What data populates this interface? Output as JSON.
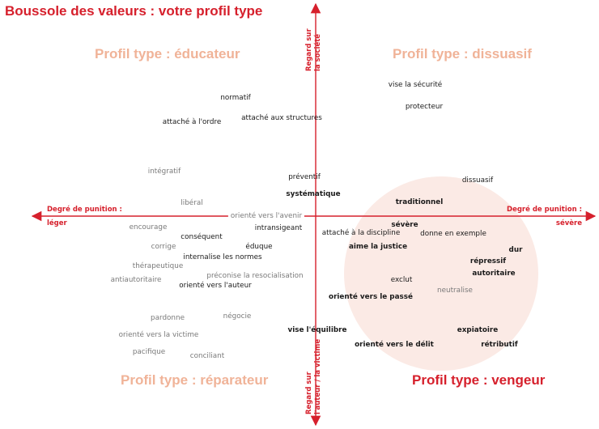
{
  "title": "Boussole des valeurs : votre profil type",
  "quadrants": {
    "educateur": "Profil type : éducateur",
    "dissuasif": "Profil type : dissuasif",
    "reparateur": "Profil type : réparateur",
    "vengeur": "Profil type : vengeur"
  },
  "axes": {
    "left_top": "Degré de punition :",
    "left_bottom": "léger",
    "right_top": "Degré de punition :",
    "right_bottom": "sévère",
    "top_line1": "Regard sur",
    "top_line2": "la société",
    "bottom_line1": "Regard sur",
    "bottom_line2": "l'auteur / la victime"
  },
  "colors": {
    "accent": "#d6202c",
    "quadrant_light": "#f0b398",
    "circle_fill": "#fbeae5"
  },
  "terms": [
    {
      "text": "vise la sécurité",
      "style": "dark"
    },
    {
      "text": "protecteur",
      "style": "dark"
    },
    {
      "text": "normatif",
      "style": "dark"
    },
    {
      "text": "attaché aux structures",
      "style": "dark"
    },
    {
      "text": "attaché à l'ordre",
      "style": "dark"
    },
    {
      "text": "intégratif",
      "style": "gray"
    },
    {
      "text": "préventif",
      "style": "dark"
    },
    {
      "text": "systématique",
      "style": "bold"
    },
    {
      "text": "dissuasif",
      "style": "dark"
    },
    {
      "text": "libéral",
      "style": "gray"
    },
    {
      "text": "traditionnel",
      "style": "bold"
    },
    {
      "text": "orienté vers l'avenir",
      "style": "gray"
    },
    {
      "text": "encourage",
      "style": "gray"
    },
    {
      "text": "intransigeant",
      "style": "dark"
    },
    {
      "text": "sévère",
      "style": "bold"
    },
    {
      "text": "corrige",
      "style": "gray"
    },
    {
      "text": "conséquent",
      "style": "dark"
    },
    {
      "text": "attaché à la discipline",
      "style": "dark"
    },
    {
      "text": "donne en exemple",
      "style": "dark"
    },
    {
      "text": "éduque",
      "style": "dark"
    },
    {
      "text": "aime la justice",
      "style": "bold"
    },
    {
      "text": "dur",
      "style": "bold"
    },
    {
      "text": "internalise les normes",
      "style": "dark"
    },
    {
      "text": "thérapeutique",
      "style": "gray"
    },
    {
      "text": "répressif",
      "style": "bold"
    },
    {
      "text": "préconise la resocialisation",
      "style": "gray"
    },
    {
      "text": "autoritaire",
      "style": "bold"
    },
    {
      "text": "antiautoritaire",
      "style": "gray"
    },
    {
      "text": "orienté vers l'auteur",
      "style": "dark"
    },
    {
      "text": "exclut",
      "style": "dark"
    },
    {
      "text": "neutralise",
      "style": "gray"
    },
    {
      "text": "orienté vers le passé",
      "style": "bold"
    },
    {
      "text": "négocie",
      "style": "gray"
    },
    {
      "text": "pardonne",
      "style": "gray"
    },
    {
      "text": "vise l'équilibre",
      "style": "bold"
    },
    {
      "text": "expiatoire",
      "style": "bold"
    },
    {
      "text": "orienté vers la victime",
      "style": "gray"
    },
    {
      "text": "orienté vers le délit",
      "style": "bold"
    },
    {
      "text": "rétributif",
      "style": "bold"
    },
    {
      "text": "pacifique",
      "style": "gray"
    },
    {
      "text": "conciliant",
      "style": "gray"
    }
  ]
}
